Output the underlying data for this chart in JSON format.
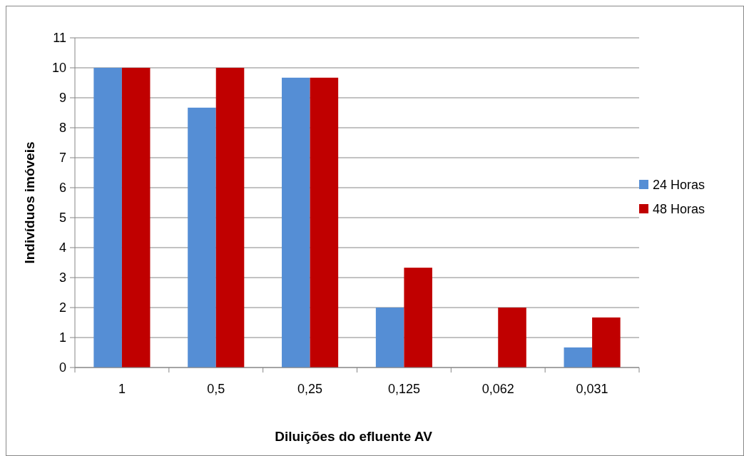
{
  "chart_data": {
    "type": "bar",
    "xlabel": "Diluições do efluente AV",
    "ylabel": "Indivíduos imóveis",
    "categories": [
      "1",
      "0,5",
      "0,25",
      "0,125",
      "0,062",
      "0,031"
    ],
    "series": [
      {
        "name": "24 Horas",
        "color": "#558ed5",
        "values": [
          10,
          8.67,
          9.67,
          2,
          0,
          0.67
        ]
      },
      {
        "name": "48 Horas",
        "color": "#c00000",
        "values": [
          10,
          10,
          9.67,
          3.33,
          2,
          1.67
        ]
      }
    ],
    "ylim": [
      0,
      11
    ],
    "yticks": [
      0,
      1,
      2,
      3,
      4,
      5,
      6,
      7,
      8,
      9,
      10,
      11
    ],
    "grid": "y",
    "legend": "right"
  }
}
